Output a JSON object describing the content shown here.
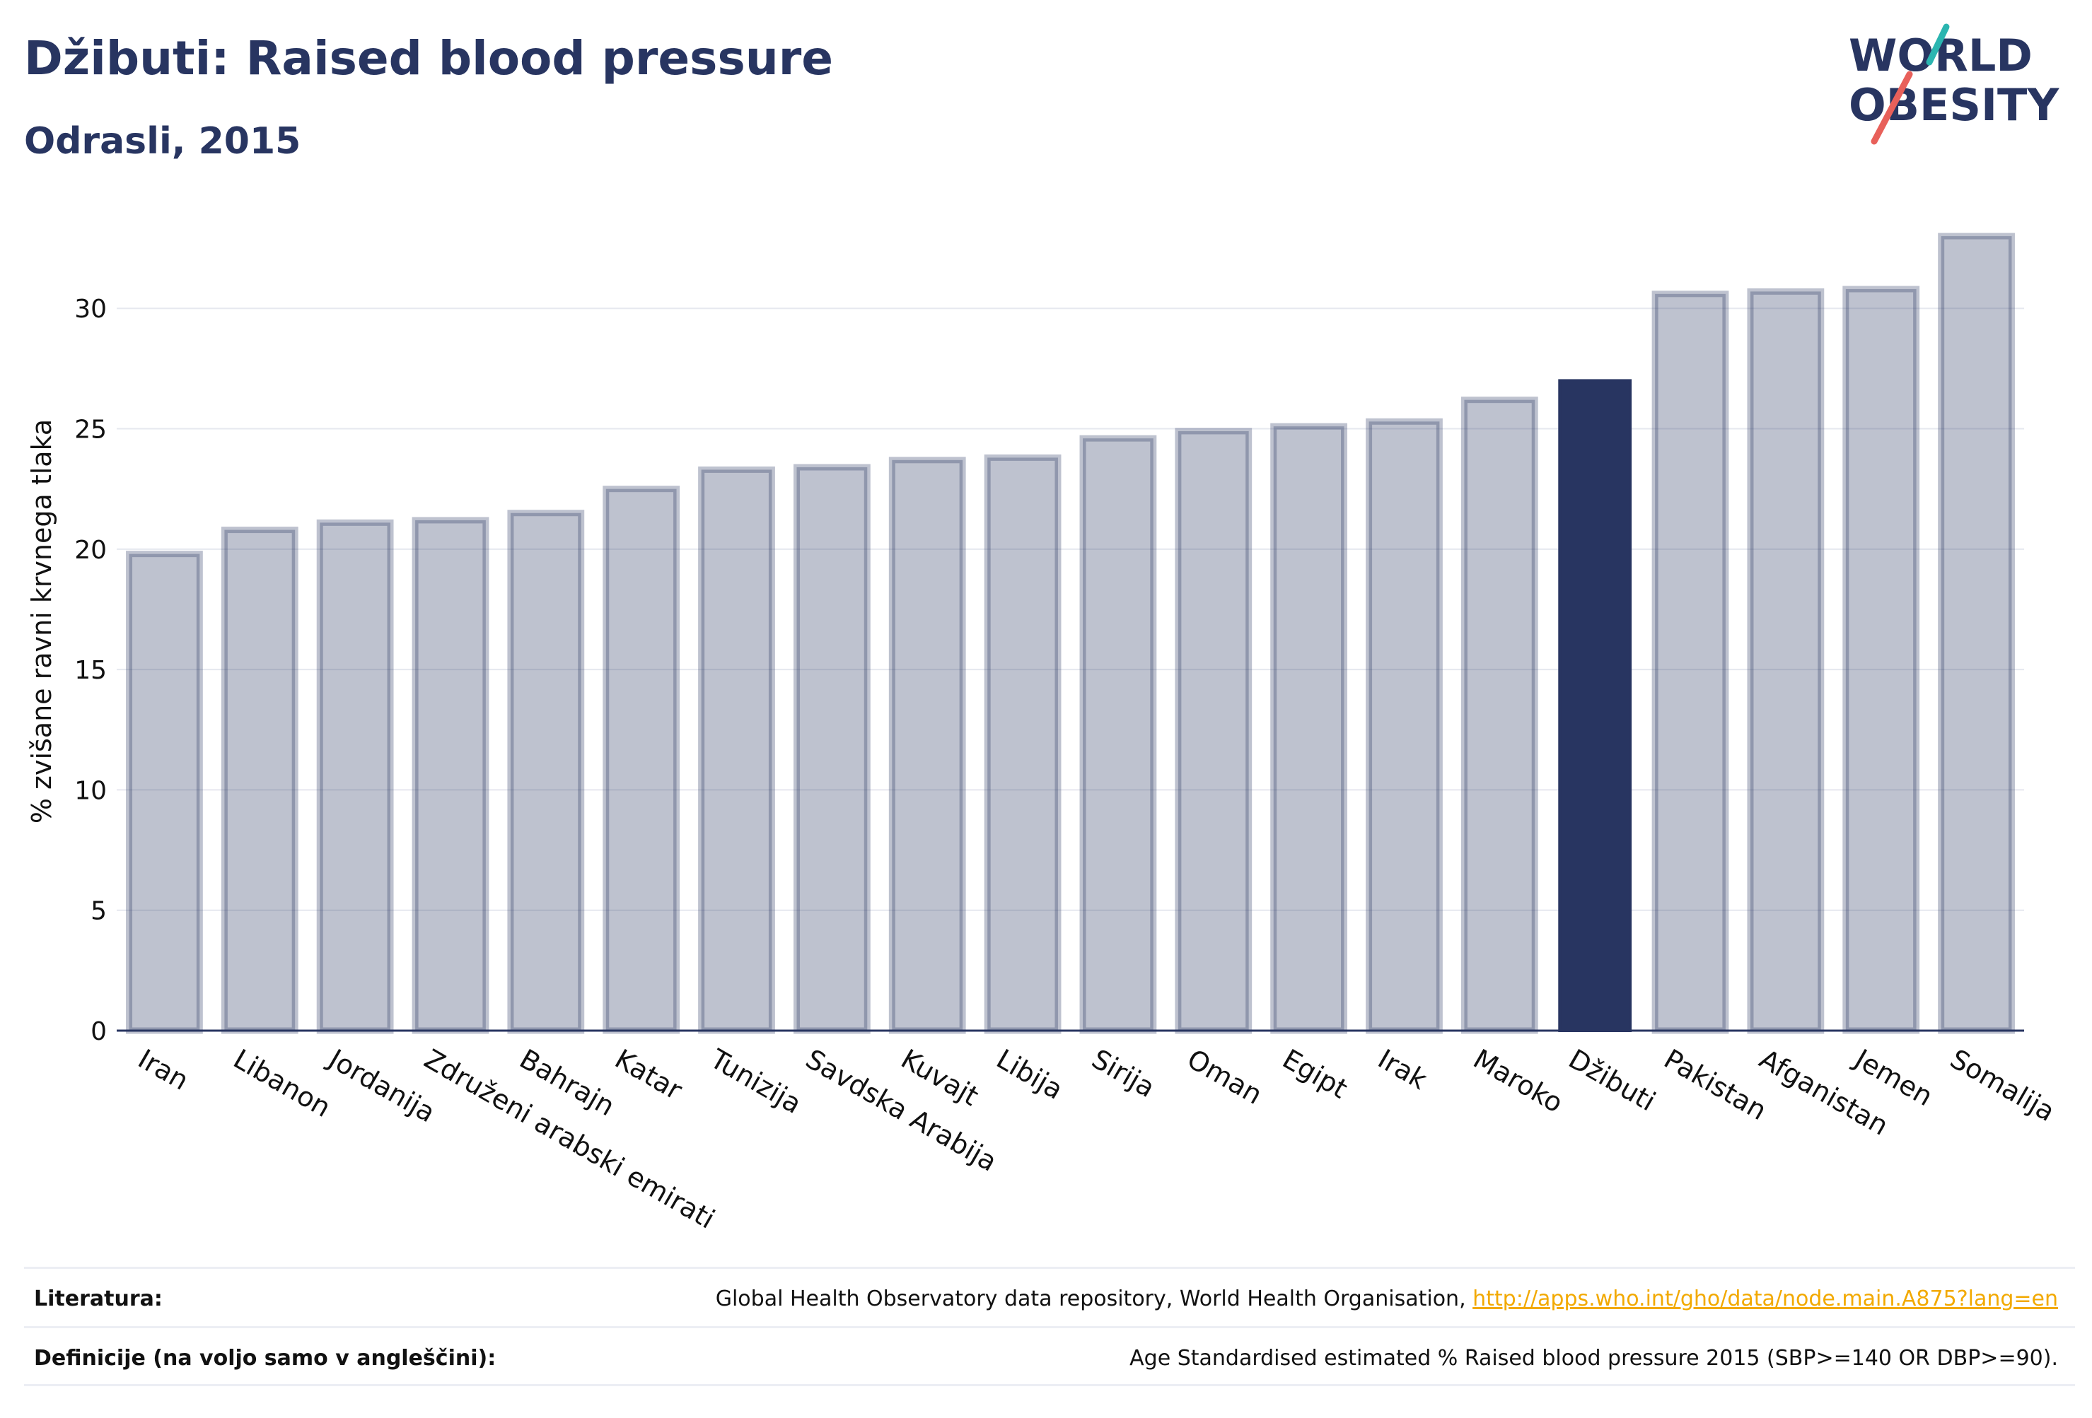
{
  "header": {
    "title": "Džibuti: Raised blood pressure",
    "subtitle": "Odrasli, 2015"
  },
  "logo": {
    "line1": "WORLD",
    "line2": "OBESITY",
    "accent_teal": "#2bb5b0",
    "accent_red": "#e8605a"
  },
  "colors": {
    "bar_default": "#283561",
    "bar_highlight": "#283561",
    "text": "#283561"
  },
  "chart_data": {
    "type": "bar",
    "ylabel": "% zvišane ravni krvnega tlaka",
    "xlabel": "",
    "ylim": [
      0,
      34
    ],
    "yticks": [
      0,
      5,
      10,
      15,
      20,
      25,
      30
    ],
    "grid": true,
    "highlight": "Džibuti",
    "categories": [
      "Iran",
      "Libanon",
      "Jordanija",
      "Združeni arabski emirati",
      "Bahrajn",
      "Katar",
      "Tunizija",
      "Savdska Arabija",
      "Kuvajt",
      "Libija",
      "Sirija",
      "Oman",
      "Egipt",
      "Irak",
      "Maroko",
      "Džibuti",
      "Pakistan",
      "Afganistan",
      "Jemen",
      "Somalija"
    ],
    "values": [
      19.8,
      20.8,
      21.1,
      21.2,
      21.5,
      22.5,
      23.3,
      23.4,
      23.7,
      23.8,
      24.6,
      24.9,
      25.1,
      25.3,
      26.2,
      27.0,
      30.6,
      30.7,
      30.8,
      33.0
    ]
  },
  "footer": {
    "sources_label": "Literatura:",
    "sources_text": "Global Health Observatory data repository, World Health Organisation, ",
    "sources_link": "http://apps.who.int/gho/data/node.main.A875?lang=en",
    "definitions_label": "Definicije (na voljo samo v angleščini):",
    "definitions_text": "Age Standardised estimated % Raised blood pressure 2015 (SBP>=140 OR DBP>=90)."
  }
}
